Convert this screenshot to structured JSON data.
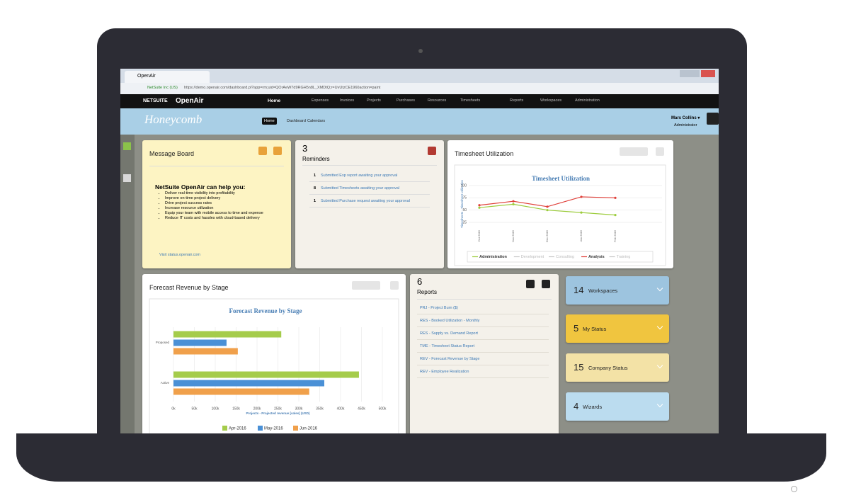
{
  "browser": {
    "tab_title": "OpenAir",
    "security": "NetSuite Inc (US)",
    "url": "https://demo.openair.com/dashboard.pl?app=rm;uid=QOrAeW7d9RGH5n8L_XMDtQ;r=UvUtzCE1960action=paint"
  },
  "nav": {
    "brand": "NETSUITE",
    "product": "OpenAir",
    "items": [
      "Home",
      "Expenses",
      "Invoices",
      "Projects",
      "Purchases",
      "Resources",
      "Timesheets",
      "Reports",
      "Workspaces",
      "Administration"
    ]
  },
  "subheader": {
    "logo": "Honeycomb",
    "tabs": [
      "Home",
      "Dashboard",
      "Calendars"
    ],
    "user": "Mars Collins ▾",
    "role": "Administrator"
  },
  "message_board": {
    "title": "Message Board",
    "heading": "NetSuite OpenAir can help you:",
    "bullets": [
      "Deliver real-time visibility into profitability",
      "Improve on-time project delivery",
      "Drive project success rates",
      "Increase resource utilization",
      "Equip your team with mobile access to time and expense",
      "Reduce IT costs and hassles with cloud-based delivery"
    ],
    "link": "Visit status.openair.com"
  },
  "reminders": {
    "count": 3,
    "title": "Reminders",
    "items": [
      {
        "count": 1,
        "text": "Submitted Exp report awaiting your approval"
      },
      {
        "count": 8,
        "text": "Submitted Timesheets awaiting your approval"
      },
      {
        "count": 1,
        "text": "Submitted Purchase request awaiting your approval"
      }
    ]
  },
  "reports": {
    "count": 6,
    "title": "Reports",
    "items": [
      "PRJ - Project Burn ($)",
      "RES - Booked Utilization - Monthly",
      "RES - Supply vs. Demand Report",
      "TME - Timesheet Status Report",
      "REV - Forecast Revenue by Stage",
      "REV - Employee Realization"
    ]
  },
  "tiles": [
    {
      "count": 14,
      "label": "Workspaces",
      "color": "#9dc4df"
    },
    {
      "count": 5,
      "label": "My Status",
      "color": "#f0c53f"
    },
    {
      "count": 15,
      "label": "Company Status",
      "color": "#f3e2a6"
    },
    {
      "count": 4,
      "label": "Wizards",
      "color": "#bbdcef"
    }
  ],
  "chart_data": [
    {
      "type": "line",
      "title": "Timesheet Utilization",
      "y_label": "Timesheets - Timesheet utilization",
      "categories": [
        "Oct 2015",
        "Nov 2015",
        "Dec 2015",
        "Jan 2016",
        "Feb 2016"
      ],
      "series": [
        {
          "name": "Administration",
          "color": "#9ccc3c",
          "visible": true,
          "values": [
            55,
            62,
            50,
            45,
            40
          ]
        },
        {
          "name": "Development",
          "color": "#c8c8c8",
          "visible": false,
          "values": [
            null,
            null,
            null,
            null,
            null
          ]
        },
        {
          "name": "Consulting",
          "color": "#c8c8c8",
          "visible": false,
          "values": [
            null,
            null,
            null,
            null,
            null
          ]
        },
        {
          "name": "Analysis",
          "color": "#e0403a",
          "visible": true,
          "values": [
            60,
            68,
            57,
            77,
            75
          ]
        },
        {
          "name": "Training",
          "color": "#c8c8c8",
          "visible": false,
          "values": [
            null,
            null,
            null,
            null,
            null
          ]
        }
      ],
      "ylim": [
        15,
        110
      ],
      "yticks": [
        25,
        50,
        75,
        100
      ],
      "grid": true
    },
    {
      "type": "hbar",
      "title": "Forecast Revenue by Stage",
      "x_label": "Projects - Projected revenue [sales] (USD)",
      "categories": [
        "Proposed",
        "Active"
      ],
      "series": [
        {
          "name": "Apr-2016",
          "color": "#a5cc4b",
          "values": [
            258000,
            444000
          ]
        },
        {
          "name": "May-2016",
          "color": "#4a90d6",
          "values": [
            127000,
            361000
          ]
        },
        {
          "name": "Jun-2016",
          "color": "#f0a04b",
          "values": [
            154000,
            325000
          ]
        }
      ],
      "xlim": [
        0,
        500000
      ],
      "xticks": [
        {
          "value": 0,
          "label": "0k"
        },
        {
          "value": 50000,
          "label": "50k"
        },
        {
          "value": 100000,
          "label": "100k"
        },
        {
          "value": 150000,
          "label": "150k"
        },
        {
          "value": 200000,
          "label": "200k"
        },
        {
          "value": 250000,
          "label": "250k"
        },
        {
          "value": 300000,
          "label": "300k"
        },
        {
          "value": 350000,
          "label": "350k"
        },
        {
          "value": 400000,
          "label": "400k"
        },
        {
          "value": 450000,
          "label": "450k"
        },
        {
          "value": 500000,
          "label": "500k"
        }
      ],
      "grid": true
    }
  ]
}
